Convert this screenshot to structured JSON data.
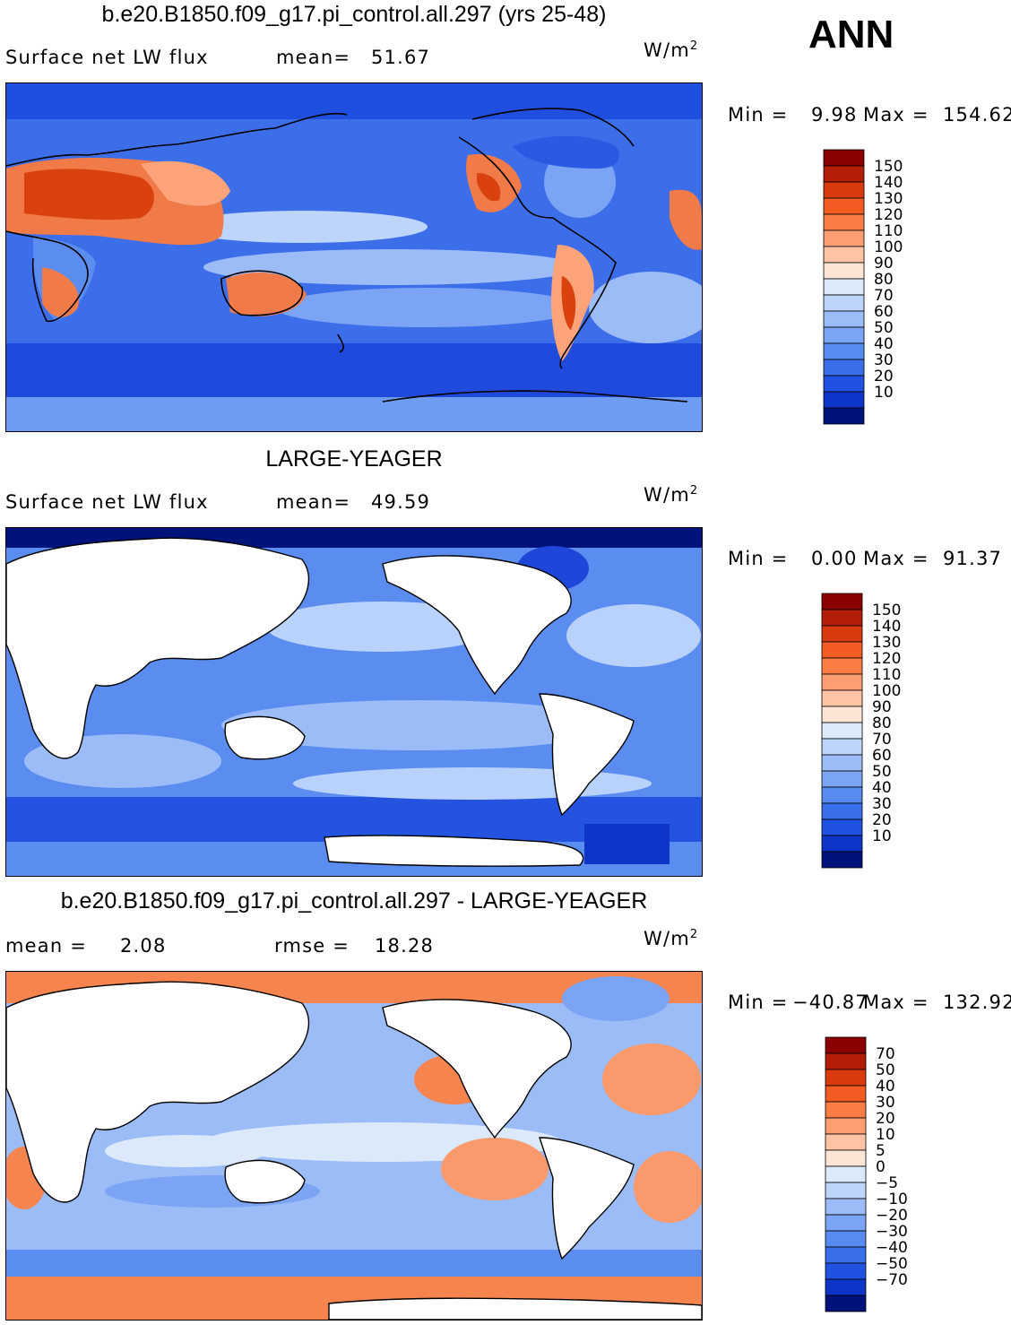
{
  "corner_label": "ANN",
  "panels": [
    {
      "title": "b.e20.B1850.f09_g17.pi_control.all.297 (yrs 25-48)",
      "left_label": "Surface net LW flux",
      "stat1_label": "mean=",
      "stat1_value": "51.67",
      "stat2_label": "",
      "stat2_value": "",
      "units": "W/m",
      "units_sup": "2",
      "min_label": "Min =",
      "min_value": "9.98",
      "max_label": "Max =",
      "max_value": "154.62",
      "colorbar_levels": [
        "150",
        "140",
        "130",
        "120",
        "110",
        "100",
        "90",
        "80",
        "70",
        "60",
        "50",
        "40",
        "30",
        "20",
        "10"
      ],
      "colorbar_colors": [
        "#8b0000",
        "#b31e06",
        "#d93a0e",
        "#f25b22",
        "#fa7d45",
        "#fd9e72",
        "#fdc3a4",
        "#fde5d6",
        "#dce9fb",
        "#bdd4fb",
        "#9cbcf8",
        "#7ba4f4",
        "#578bf0",
        "#3a6fec",
        "#2052e2",
        "#0e34c8"
      ],
      "colorbar_bottom_color": "#00137a"
    },
    {
      "title": "LARGE-YEAGER",
      "left_label": "Surface net LW flux",
      "stat1_label": "mean=",
      "stat1_value": "49.59",
      "stat2_label": "",
      "stat2_value": "",
      "units": "W/m",
      "units_sup": "2",
      "min_label": "Min =",
      "min_value": "0.00",
      "max_label": "Max =",
      "max_value": "91.37",
      "colorbar_levels": [
        "150",
        "140",
        "130",
        "120",
        "110",
        "100",
        "90",
        "80",
        "70",
        "60",
        "50",
        "40",
        "30",
        "20",
        "10"
      ],
      "colorbar_colors": [
        "#8b0000",
        "#b31e06",
        "#d93a0e",
        "#f25b22",
        "#fa7d45",
        "#fd9e72",
        "#fdc3a4",
        "#fde5d6",
        "#dce9fb",
        "#bdd4fb",
        "#9cbcf8",
        "#7ba4f4",
        "#578bf0",
        "#3a6fec",
        "#2052e2",
        "#0e34c8"
      ],
      "colorbar_bottom_color": "#00137a"
    },
    {
      "title": "b.e20.B1850.f09_g17.pi_control.all.297 - LARGE-YEAGER",
      "left_label": "mean =",
      "stat1_label": "",
      "stat1_value": "2.08",
      "stat2_label": "rmse =",
      "stat2_value": "18.28",
      "units": "W/m",
      "units_sup": "2",
      "min_label": "Min =",
      "min_value": "−40.87",
      "max_label": "Max =",
      "max_value": "132.92",
      "colorbar_levels": [
        "70",
        "50",
        "40",
        "30",
        "20",
        "10",
        "5",
        "0",
        "−5",
        "−10",
        "−20",
        "−30",
        "−40",
        "−50",
        "−70"
      ],
      "colorbar_colors": [
        "#8b0000",
        "#b31e06",
        "#d93a0e",
        "#f25b22",
        "#fa7d45",
        "#fd9e72",
        "#fdc3a4",
        "#fde5d6",
        "#dce9fb",
        "#bdd4fb",
        "#9cbcf8",
        "#7ba4f4",
        "#578bf0",
        "#3a6fec",
        "#2052e2",
        "#0e34c8"
      ],
      "colorbar_bottom_color": "#00137a"
    }
  ],
  "colors": {
    "ocean_deep": "#2453e0",
    "ocean_mid": "#5b8df0",
    "ocean_light": "#b9d2fb",
    "land_warm": "#f07a48",
    "land_hot": "#d9410f",
    "diff_pos": "#f5844e",
    "diff_neg": "#8fb4f6",
    "land_mask": "#ffffff",
    "coast": "#000000"
  }
}
